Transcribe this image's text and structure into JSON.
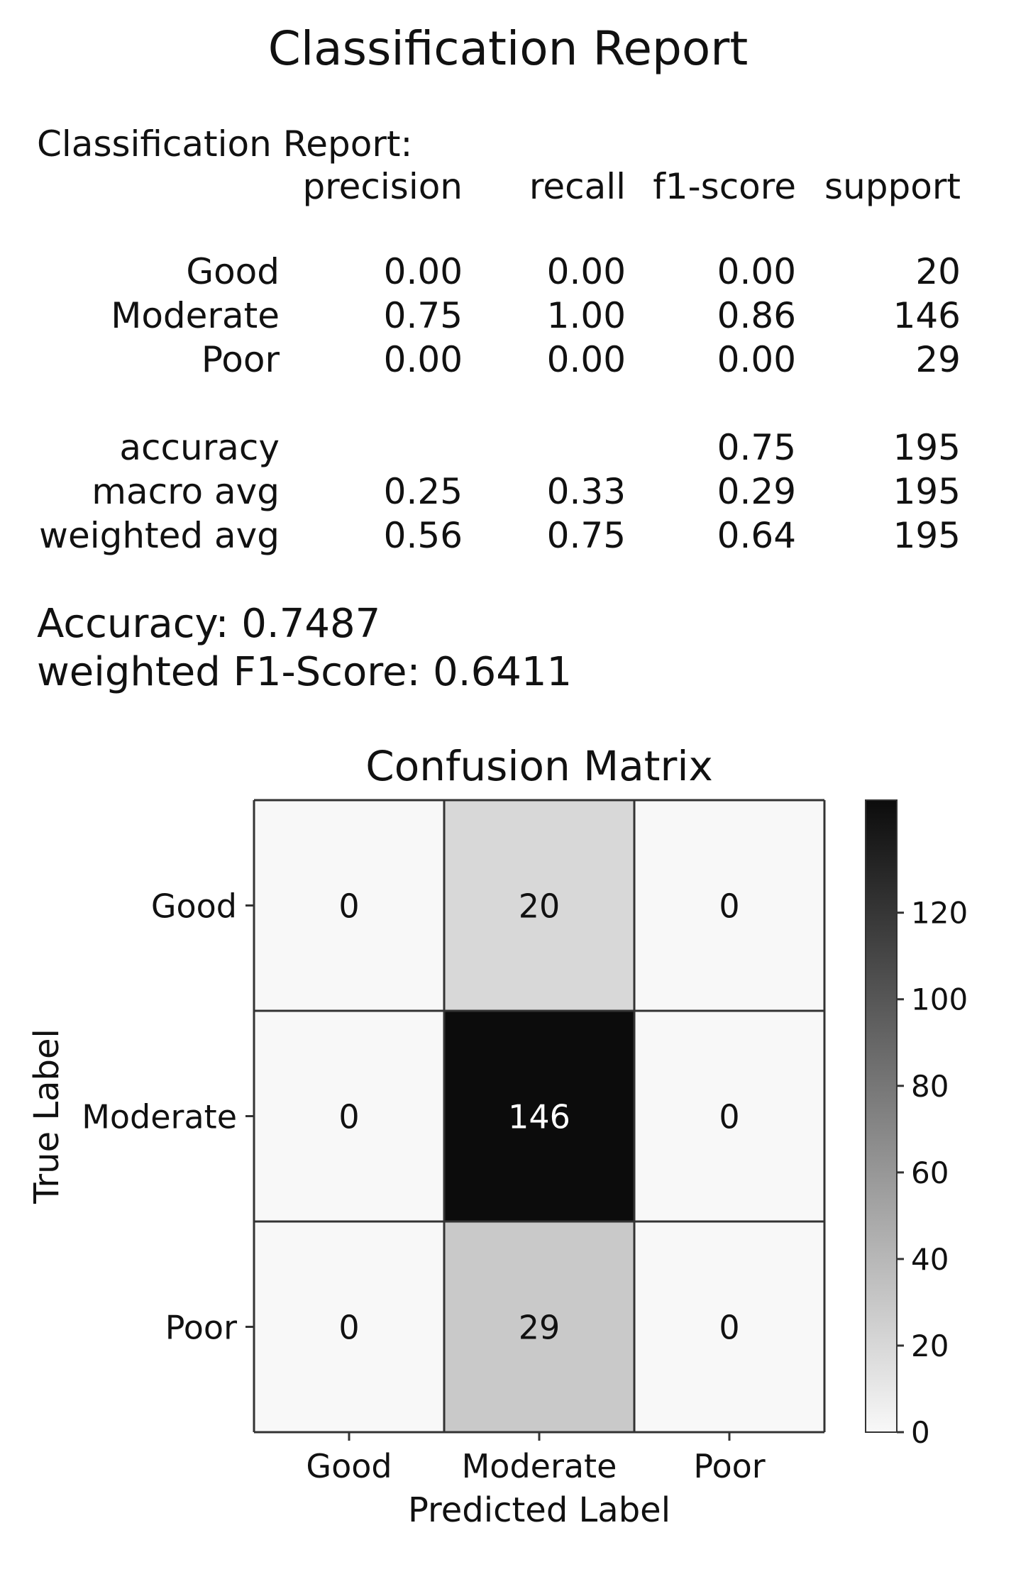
{
  "page_title": "Classification Report",
  "report": {
    "heading": "Classification Report:",
    "columns": [
      "precision",
      "recall",
      "f1-score",
      "support"
    ],
    "class_rows": [
      {
        "label": "Good",
        "precision": "0.00",
        "recall": "0.00",
        "f1": "0.00",
        "support": "20"
      },
      {
        "label": "Moderate",
        "precision": "0.75",
        "recall": "1.00",
        "f1": "0.86",
        "support": "146"
      },
      {
        "label": "Poor",
        "precision": "0.00",
        "recall": "0.00",
        "f1": "0.00",
        "support": "29"
      }
    ],
    "summary_rows": [
      {
        "label": "accuracy",
        "precision": "",
        "recall": "",
        "f1": "0.75",
        "support": "195"
      },
      {
        "label": "macro avg",
        "precision": "0.25",
        "recall": "0.33",
        "f1": "0.29",
        "support": "195"
      },
      {
        "label": "weighted avg",
        "precision": "0.56",
        "recall": "0.75",
        "f1": "0.64",
        "support": "195"
      }
    ]
  },
  "summary": {
    "accuracy_line": "Accuracy: 0.7487",
    "f1_line": "weighted F1-Score: 0.6411"
  },
  "chart_data": {
    "type": "heatmap",
    "title": "Confusion Matrix",
    "xlabel": "Predicted Label",
    "ylabel": "True Label",
    "x_categories": [
      "Good",
      "Moderate",
      "Poor"
    ],
    "y_categories": [
      "Good",
      "Moderate",
      "Poor"
    ],
    "values": [
      [
        0,
        20,
        0
      ],
      [
        0,
        146,
        0
      ],
      [
        0,
        29,
        0
      ]
    ],
    "colormap": "Greys",
    "colorbar": {
      "ticks": [
        0,
        20,
        40,
        60,
        80,
        100,
        120
      ],
      "range": [
        0,
        146
      ]
    }
  }
}
